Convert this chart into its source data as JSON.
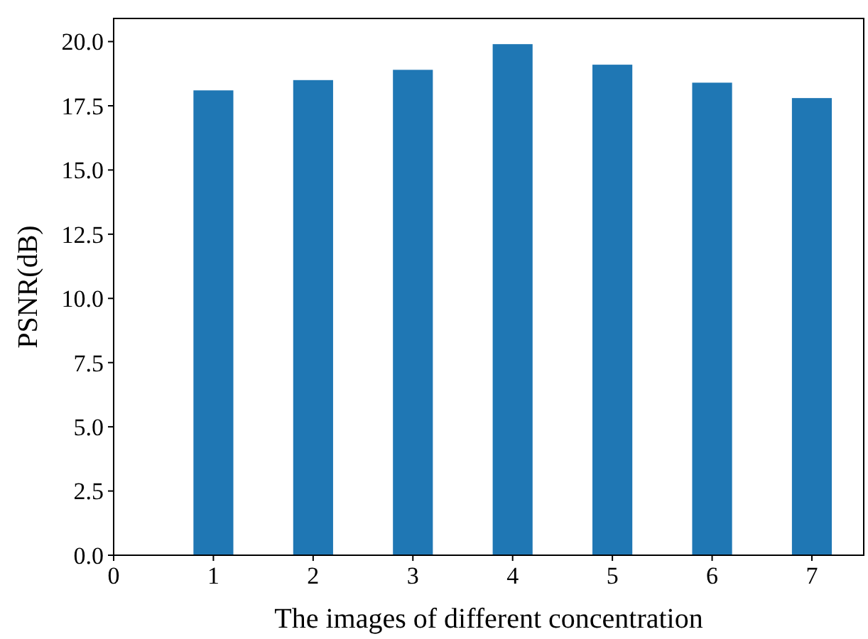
{
  "chart_data": {
    "type": "bar",
    "xlabel": "The images of different concentration",
    "ylabel": "PSNR(dB)",
    "x": [
      1,
      2,
      3,
      4,
      5,
      6,
      7
    ],
    "values": [
      18.1,
      18.5,
      18.9,
      19.9,
      19.1,
      18.4,
      17.8
    ],
    "color": "#1f77b4",
    "xlim": [
      0,
      7.52
    ],
    "xticks": [
      0,
      1,
      2,
      3,
      4,
      5,
      6,
      7
    ],
    "ylim": [
      0,
      20.9
    ],
    "yticks": [
      {
        "value": 0,
        "label": "0.0"
      },
      {
        "value": 2.5,
        "label": "2.5"
      },
      {
        "value": 5,
        "label": "5.0"
      },
      {
        "value": 7.5,
        "label": "7.5"
      },
      {
        "value": 10,
        "label": "10.0"
      },
      {
        "value": 12.5,
        "label": "12.5"
      },
      {
        "value": 15,
        "label": "15.0"
      },
      {
        "value": 17.5,
        "label": "17.5"
      },
      {
        "value": 20,
        "label": "20.0"
      }
    ],
    "grid": false
  }
}
